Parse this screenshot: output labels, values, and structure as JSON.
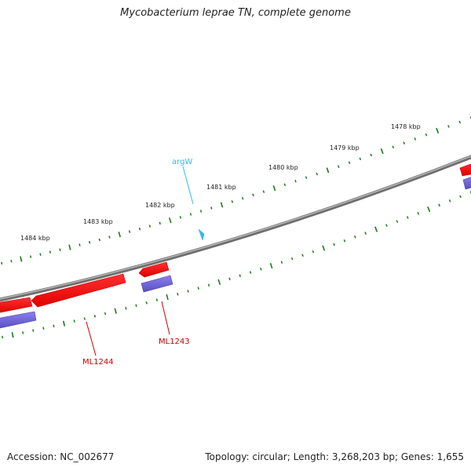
{
  "title": "Mycobacterium leprae TN, complete genome",
  "footer": {
    "accession": "Accession: NC_002677",
    "summary": "Topology: circular; Length: 3,268,203 bp; Genes: 1,655"
  },
  "ruler": {
    "tick_labels": [
      "1478 kbp",
      "1479 kbp",
      "1480 kbp",
      "1481 kbp",
      "1482 kbp",
      "1483 kbp",
      "1484 kbp"
    ]
  },
  "features": {
    "trna": {
      "name": "argW",
      "color": "#33bbee"
    },
    "genes": [
      {
        "name": "ML1243",
        "color": "#cc0000"
      },
      {
        "name": "ML1244",
        "color": "#cc0000"
      }
    ]
  },
  "colors": {
    "backbone": "#7a7a7a",
    "cds": "#ff1a1a",
    "gene": "#7766dd",
    "tick": "#1a7a1a",
    "trna": "#33bbee",
    "label_red": "#cc0000"
  }
}
